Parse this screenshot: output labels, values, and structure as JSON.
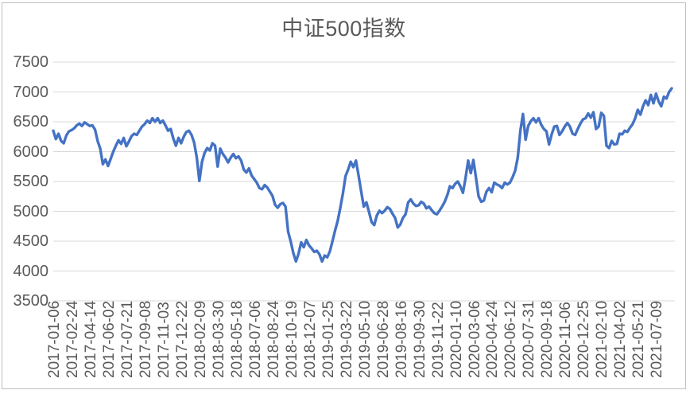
{
  "chart_data": {
    "type": "line",
    "title": "中证500指数",
    "x_axis_label": "",
    "y_axis_label": "",
    "legend_position": "none",
    "grid": "horizontal",
    "ylim": [
      3500,
      7500
    ],
    "y_tick_step": 500,
    "y_ticks": [
      7500,
      7000,
      6500,
      6000,
      5500,
      5000,
      4500,
      4000,
      3500
    ],
    "x_label_every": 7,
    "x_labels_rotation": -90,
    "x_labels": [
      "2017-01-06",
      "2017-02-24",
      "2017-04-14",
      "2017-06-02",
      "2017-07-21",
      "2017-09-08",
      "2017-11-03",
      "2017-12-22",
      "2018-02-09",
      "2018-03-30",
      "2018-05-18",
      "2018-07-06",
      "2018-08-24",
      "2018-10-19",
      "2018-12-07",
      "2019-01-25",
      "2019-03-22",
      "2019-05-10",
      "2019-06-28",
      "2019-08-16",
      "2019-09-30",
      "2019-11-22",
      "2020-01-10",
      "2020-03-06",
      "2020-04-24",
      "2020-06-12",
      "2020-07-31",
      "2020-09-18",
      "2020-11-06",
      "2020-12-25",
      "2021-02-10",
      "2021-04-02",
      "2021-05-21",
      "2021-07-09"
    ],
    "series": [
      {
        "name": "中证500指数",
        "values": [
          6350,
          6210,
          6300,
          6180,
          6140,
          6270,
          6340,
          6360,
          6390,
          6440,
          6470,
          6430,
          6490,
          6460,
          6430,
          6440,
          6370,
          6180,
          6050,
          5790,
          5870,
          5760,
          5880,
          6000,
          6100,
          6190,
          6130,
          6230,
          6090,
          6170,
          6260,
          6300,
          6280,
          6350,
          6420,
          6460,
          6520,
          6480,
          6560,
          6500,
          6560,
          6480,
          6520,
          6440,
          6350,
          6380,
          6220,
          6100,
          6230,
          6140,
          6250,
          6330,
          6350,
          6280,
          6150,
          5900,
          5510,
          5830,
          5980,
          6060,
          6020,
          6140,
          6100,
          5750,
          6050,
          5960,
          5900,
          5820,
          5900,
          5960,
          5890,
          5920,
          5850,
          5700,
          5650,
          5720,
          5600,
          5540,
          5480,
          5390,
          5370,
          5440,
          5400,
          5330,
          5260,
          5110,
          5060,
          5120,
          5140,
          5080,
          4660,
          4495,
          4300,
          4160,
          4290,
          4480,
          4400,
          4520,
          4430,
          4380,
          4320,
          4340,
          4280,
          4160,
          4260,
          4230,
          4330,
          4500,
          4680,
          4840,
          5060,
          5300,
          5590,
          5700,
          5830,
          5740,
          5850,
          5600,
          5330,
          5080,
          5150,
          4990,
          4820,
          4770,
          4930,
          5010,
          4970,
          5010,
          5070,
          5040,
          4960,
          4890,
          4730,
          4780,
          4890,
          4950,
          5150,
          5200,
          5130,
          5090,
          5100,
          5160,
          5130,
          5050,
          5080,
          5020,
          4970,
          4950,
          5010,
          5080,
          5160,
          5270,
          5420,
          5390,
          5460,
          5500,
          5420,
          5310,
          5560,
          5850,
          5640,
          5860,
          5560,
          5250,
          5160,
          5180,
          5330,
          5390,
          5320,
          5480,
          5450,
          5430,
          5390,
          5480,
          5450,
          5480,
          5570,
          5680,
          5900,
          6350,
          6630,
          6200,
          6430,
          6510,
          6560,
          6490,
          6560,
          6450,
          6380,
          6340,
          6120,
          6290,
          6420,
          6430,
          6280,
          6340,
          6420,
          6480,
          6420,
          6300,
          6280,
          6380,
          6470,
          6540,
          6560,
          6640,
          6570,
          6660,
          6380,
          6420,
          6650,
          6600,
          6100,
          6060,
          6180,
          6120,
          6130,
          6300,
          6290,
          6350,
          6330,
          6400,
          6460,
          6560,
          6700,
          6620,
          6760,
          6860,
          6780,
          6950,
          6810,
          6970,
          6840,
          6760,
          6920,
          6890,
          7000,
          7060
        ]
      }
    ],
    "colors": {
      "line": "#4472C4",
      "title_text": "#595959",
      "axis_text": "#595959",
      "gridline": "#D9D9D9",
      "axis_line": "#D9D9D9",
      "frame_border": "#BFBFBF",
      "background": "#FFFFFF"
    }
  }
}
